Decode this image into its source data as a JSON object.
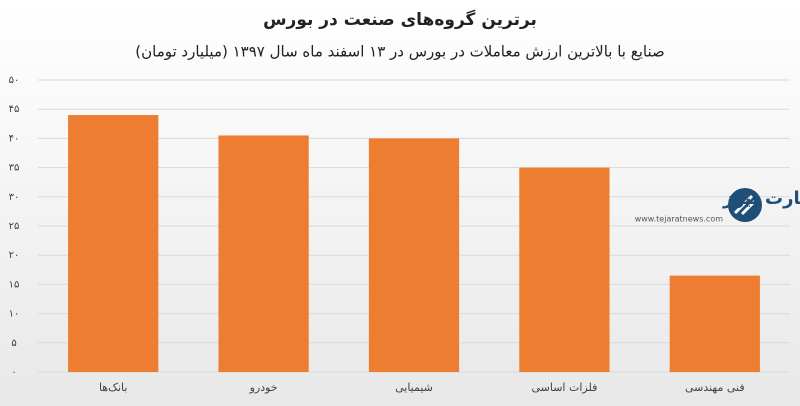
{
  "chart_data": {
    "type": "bar",
    "title": "برترین گروه‌های صنعت در بورس",
    "subtitle": "صنایع با بالاترین ارزش معاملات در بورس در ۱۳ اسفند ماه سال ۱۳۹۷ (میلیارد تومان)",
    "categories": [
      "بانک‌ها",
      "خودرو",
      "شیمیایی",
      "فلزات اساسی",
      "فنی مهندسی"
    ],
    "values": [
      44,
      40.5,
      40,
      35,
      16.5
    ],
    "color": "#ed7d31",
    "ylim": [
      0,
      50
    ],
    "yticks": [
      {
        "value": 0,
        "label": "۰"
      },
      {
        "value": 5,
        "label": "۵"
      },
      {
        "value": 10,
        "label": "۱۰"
      },
      {
        "value": 15,
        "label": "۱۵"
      },
      {
        "value": 20,
        "label": "۲۰"
      },
      {
        "value": 25,
        "label": "۲۵"
      },
      {
        "value": 30,
        "label": "۳۰"
      },
      {
        "value": 35,
        "label": "۳۵"
      },
      {
        "value": 40,
        "label": "۴۰"
      },
      {
        "value": 45,
        "label": "۴۵"
      },
      {
        "value": 50,
        "label": "۵۰"
      }
    ],
    "grid": true,
    "watermark": {
      "name": "تجارت نیوز",
      "url": "www.tejaratnews.com"
    }
  }
}
